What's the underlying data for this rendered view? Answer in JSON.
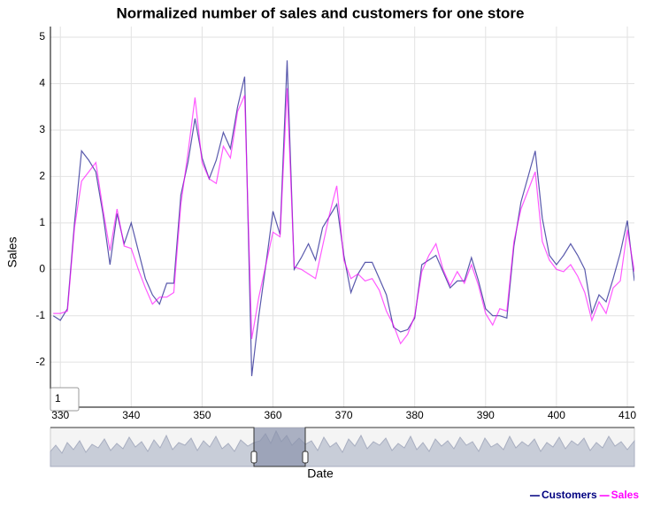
{
  "chart_data": {
    "type": "line",
    "title": "Normalized number of sales and customers for one store",
    "xlabel": "Date",
    "ylabel": "Sales",
    "roll_period": "1",
    "x": [
      329,
      330,
      331,
      332,
      333,
      334,
      335,
      336,
      337,
      338,
      339,
      340,
      341,
      342,
      343,
      344,
      345,
      346,
      347,
      348,
      349,
      350,
      351,
      352,
      353,
      354,
      355,
      356,
      357,
      358,
      359,
      360,
      361,
      362,
      363,
      364,
      365,
      366,
      367,
      368,
      369,
      370,
      371,
      372,
      373,
      374,
      375,
      376,
      377,
      378,
      379,
      380,
      381,
      382,
      383,
      384,
      385,
      386,
      387,
      388,
      389,
      390,
      391,
      392,
      393,
      394,
      395,
      396,
      397,
      398,
      399,
      400,
      401,
      402,
      403,
      404,
      405,
      406,
      407,
      408,
      409,
      410,
      411
    ],
    "series": [
      {
        "name": "Customers",
        "color": "#000080",
        "values": [
          -1.0,
          -1.1,
          -0.85,
          1.0,
          2.55,
          2.35,
          2.1,
          1.2,
          0.1,
          1.2,
          0.55,
          1.0,
          0.4,
          -0.2,
          -0.55,
          -0.75,
          -0.3,
          -0.3,
          1.6,
          2.3,
          3.25,
          2.4,
          1.95,
          2.35,
          2.95,
          2.6,
          3.5,
          4.15,
          -2.3,
          -1.0,
          0.1,
          1.25,
          0.75,
          4.5,
          0.0,
          0.25,
          0.55,
          0.2,
          0.9,
          1.15,
          1.4,
          0.3,
          -0.5,
          -0.1,
          0.15,
          0.15,
          -0.2,
          -0.55,
          -1.25,
          -1.35,
          -1.3,
          -1.05,
          0.1,
          0.2,
          0.3,
          -0.05,
          -0.4,
          -0.25,
          -0.25,
          0.25,
          -0.25,
          -0.85,
          -1.0,
          -1.0,
          -1.05,
          0.5,
          1.45,
          2.0,
          2.55,
          1.1,
          0.3,
          0.1,
          0.3,
          0.55,
          0.3,
          0.0,
          -0.95,
          -0.55,
          -0.7,
          -0.2,
          0.35,
          1.05,
          -0.25
        ]
      },
      {
        "name": "Sales",
        "color": "#ff00ff",
        "values": [
          -0.95,
          -0.95,
          -0.9,
          0.9,
          1.9,
          2.1,
          2.3,
          1.3,
          0.4,
          1.3,
          0.5,
          0.45,
          0.0,
          -0.4,
          -0.75,
          -0.6,
          -0.6,
          -0.5,
          1.4,
          2.5,
          3.7,
          2.3,
          1.95,
          1.85,
          2.65,
          2.4,
          3.4,
          3.75,
          -1.5,
          -0.6,
          0.1,
          0.8,
          0.7,
          3.9,
          0.05,
          0.0,
          -0.1,
          -0.2,
          0.5,
          1.2,
          1.8,
          0.2,
          -0.2,
          -0.1,
          -0.25,
          -0.2,
          -0.45,
          -0.9,
          -1.2,
          -1.6,
          -1.4,
          -1.0,
          -0.05,
          0.3,
          0.55,
          0.0,
          -0.35,
          -0.05,
          -0.3,
          0.1,
          -0.35,
          -0.95,
          -1.2,
          -0.85,
          -0.9,
          0.6,
          1.3,
          1.7,
          2.1,
          0.6,
          0.2,
          0.0,
          -0.05,
          0.1,
          -0.15,
          -0.5,
          -1.1,
          -0.7,
          -0.95,
          -0.4,
          -0.25,
          0.85,
          -0.05
        ]
      }
    ],
    "xlim": [
      328.6,
      411
    ],
    "ylim": [
      -2.97,
      5.23
    ],
    "xticks": [
      330,
      340,
      350,
      360,
      370,
      380,
      390,
      400,
      410
    ],
    "yticks": [
      -2,
      -1,
      0,
      1,
      2,
      3,
      4,
      5
    ],
    "grid": true
  }
}
